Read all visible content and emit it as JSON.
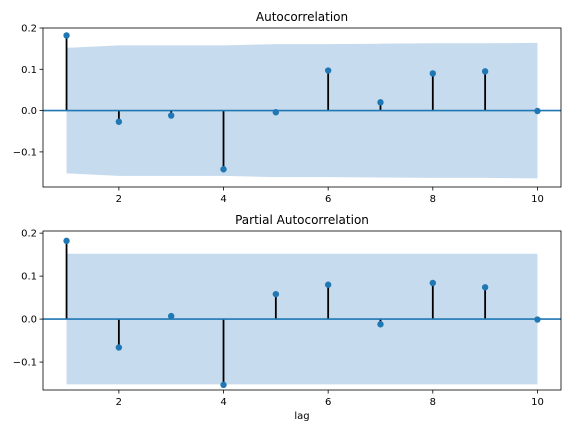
{
  "colors": {
    "marker": "#1f77b4",
    "zero_line": "#1f77b4",
    "band": "#c6dbed",
    "stem": "#000000",
    "axes": "#000000"
  },
  "chart_data": [
    {
      "type": "scatter",
      "subtype": "stem",
      "title": "Autocorrelation",
      "xlabel": "",
      "ylabel": "",
      "xlim": [
        0.55,
        10.45
      ],
      "ylim": [
        -0.185,
        0.2
      ],
      "xticks": [
        2,
        4,
        6,
        8,
        10
      ],
      "show_xtick_labels": true,
      "yticks": [
        -0.1,
        0.0,
        0.1,
        0.2
      ],
      "ytick_labels": [
        "−0.1",
        "0.0",
        "0.1",
        "0.2"
      ],
      "grid": false,
      "x": [
        1,
        2,
        3,
        4,
        5,
        6,
        7,
        8,
        9,
        10
      ],
      "values": [
        0.182,
        -0.027,
        -0.012,
        -0.142,
        -0.004,
        0.097,
        0.02,
        0.09,
        0.095,
        -0.001
      ],
      "confidence_band": {
        "x": [
          1,
          2,
          3,
          4,
          5,
          6,
          7,
          8,
          9,
          10
        ],
        "upper": [
          0.152,
          0.158,
          0.158,
          0.158,
          0.161,
          0.161,
          0.162,
          0.163,
          0.163,
          0.164
        ],
        "lower": [
          -0.152,
          -0.158,
          -0.158,
          -0.158,
          -0.161,
          -0.161,
          -0.162,
          -0.163,
          -0.163,
          -0.164
        ]
      }
    },
    {
      "type": "scatter",
      "subtype": "stem",
      "title": "Partial Autocorrelation",
      "xlabel": "lag",
      "ylabel": "",
      "xlim": [
        0.55,
        10.45
      ],
      "ylim": [
        -0.165,
        0.205
      ],
      "xticks": [
        2,
        4,
        6,
        8,
        10
      ],
      "show_xtick_labels": true,
      "yticks": [
        -0.1,
        0.0,
        0.1,
        0.2
      ],
      "ytick_labels": [
        "−0.1",
        "0.0",
        "0.1",
        "0.2"
      ],
      "grid": false,
      "x": [
        1,
        2,
        3,
        4,
        5,
        6,
        7,
        8,
        9,
        10
      ],
      "values": [
        0.182,
        -0.066,
        0.007,
        -0.153,
        0.058,
        0.08,
        -0.012,
        0.084,
        0.074,
        -0.001
      ],
      "confidence_band": {
        "x": [
          1,
          2,
          3,
          4,
          5,
          6,
          7,
          8,
          9,
          10
        ],
        "upper": [
          0.152,
          0.152,
          0.152,
          0.152,
          0.152,
          0.152,
          0.152,
          0.152,
          0.152,
          0.152
        ],
        "lower": [
          -0.152,
          -0.152,
          -0.152,
          -0.152,
          -0.152,
          -0.152,
          -0.152,
          -0.152,
          -0.152,
          -0.152
        ]
      }
    }
  ]
}
